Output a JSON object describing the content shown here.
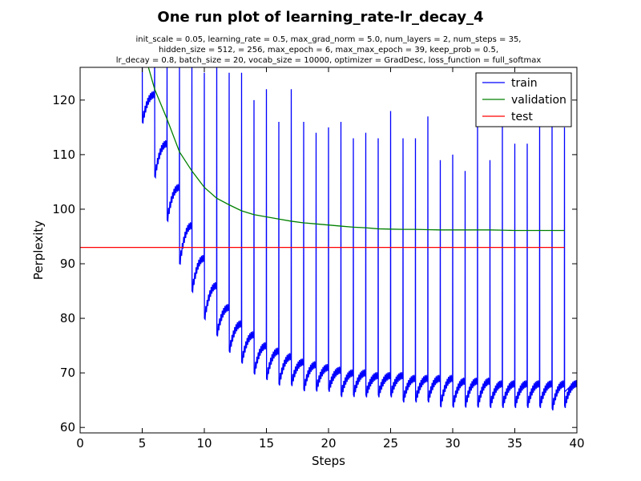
{
  "chart_data": {
    "type": "line",
    "title": "One run plot of learning_rate-lr_decay_4",
    "subtitle_lines": [
      "init_scale = 0.05, learning_rate = 0.5, max_grad_norm = 5.0, num_layers = 2, num_steps = 35,",
      "hidden_size = 512,    = 256, max_epoch = 6, max_max_epoch = 39, keep_prob = 0.5,",
      "lr_decay = 0.8, batch_size = 20, vocab_size = 10000, optimizer = GradDesc, loss_function = full_softmax"
    ],
    "xlabel": "Steps",
    "ylabel": "Perplexity",
    "xlim": [
      0,
      40
    ],
    "ylim": [
      59,
      126
    ],
    "xticks": [
      0,
      5,
      10,
      15,
      20,
      25,
      30,
      35,
      40
    ],
    "yticks": [
      60,
      70,
      80,
      90,
      100,
      110,
      120
    ],
    "legend_position": "top-right",
    "grid": false,
    "series": [
      {
        "name": "train",
        "color": "#0000ff",
        "epoch_start_spike": [
          135,
          130,
          128,
          126,
          130,
          125,
          132,
          125,
          125,
          120,
          122,
          116,
          122,
          116,
          114,
          115,
          116,
          113,
          114,
          113,
          118,
          113,
          113,
          117,
          109,
          110,
          107,
          118,
          109,
          116,
          112,
          112,
          118,
          118,
          115
        ],
        "epoch_first_value": [
          116,
          106,
          98,
          90,
          85,
          80,
          77,
          74,
          72,
          70,
          69,
          68,
          68,
          67,
          67,
          67,
          66,
          66,
          66,
          66,
          66,
          65,
          65,
          65,
          64,
          64,
          64,
          64,
          64,
          64,
          64,
          64,
          64,
          63.5,
          64
        ],
        "epoch_end_value": [
          121,
          112,
          104,
          97,
          91,
          86,
          82,
          79,
          77,
          75,
          74,
          73,
          72,
          71.5,
          71,
          70.5,
          70,
          70,
          69.5,
          69.5,
          69.5,
          69,
          69,
          69,
          69,
          68.5,
          68.5,
          68.5,
          68,
          68,
          68,
          68,
          68,
          68,
          68
        ],
        "final_point": [
          39,
          66.5
        ]
      },
      {
        "name": "validation",
        "color": "#008000",
        "x": [
          5,
          6,
          7,
          8,
          9,
          10,
          11,
          12,
          13,
          14,
          15,
          16,
          17,
          18,
          19,
          20,
          21,
          22,
          23,
          24,
          25,
          26,
          27,
          28,
          29,
          30,
          31,
          32,
          33,
          34,
          35,
          36,
          37,
          38,
          39
        ],
        "y": [
          130,
          122,
          116.5,
          110.5,
          107,
          104,
          102,
          100.8,
          99.7,
          99,
          98.6,
          98.2,
          97.8,
          97.5,
          97.3,
          97.1,
          96.9,
          96.7,
          96.6,
          96.4,
          96.35,
          96.3,
          96.3,
          96.25,
          96.2,
          96.2,
          96.2,
          96.2,
          96.2,
          96.15,
          96.1,
          96.1,
          96.1,
          96.1,
          96.1
        ]
      },
      {
        "name": "test",
        "color": "#ff0000",
        "x": [
          0,
          39
        ],
        "y": [
          93,
          93
        ]
      }
    ]
  }
}
